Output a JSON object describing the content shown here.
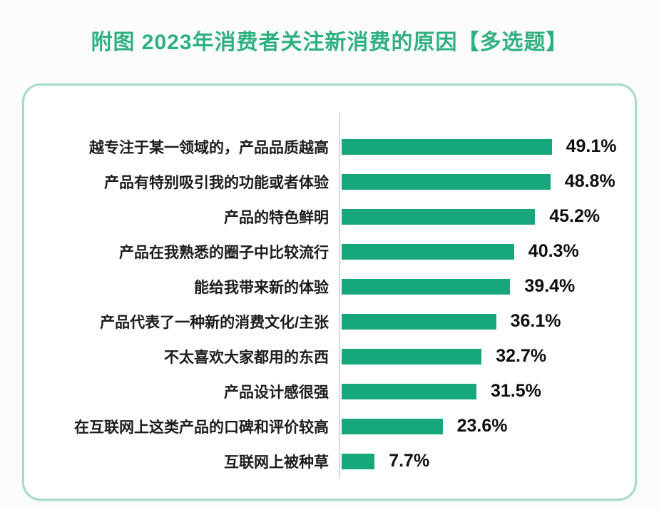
{
  "chart_data": {
    "type": "bar",
    "orientation": "horizontal",
    "title": "附图 2023年消费者关注新消费的原因【多选题】",
    "categories": [
      "越专注于某一领域的，产品品质越高",
      "产品有特别吸引我的功能或者体验",
      "产品的特色鲜明",
      "产品在我熟悉的圈子中比较流行",
      "能给我带来新的体验",
      "产品代表了一种新的消费文化/主张",
      "不太喜欢大家都用的东西",
      "产品设计感很强",
      "在互联网上这类产品的口碑和评价较高",
      "互联网上被种草"
    ],
    "values": [
      49.1,
      48.8,
      45.2,
      40.3,
      39.4,
      36.1,
      32.7,
      31.5,
      23.6,
      7.7
    ],
    "value_labels": [
      "49.1%",
      "48.8%",
      "45.2%",
      "40.3%",
      "39.4%",
      "36.1%",
      "32.7%",
      "31.5%",
      "23.6%",
      "7.7%"
    ],
    "unit": "%",
    "xlabel": "",
    "ylabel": "",
    "xlim": [
      0,
      55
    ],
    "grid": false,
    "legend": false,
    "data_labels": "outside-end",
    "bar_color": "#16a87c"
  },
  "colors": {
    "title": "#2fb080",
    "bar": "#16a87c",
    "card_border": "#a6dbc7",
    "card_bg": "#ffffff",
    "axis_line": "#d9d9d9",
    "label_text": "#1c1c1c",
    "value_text": "#0f0f0f",
    "page_bg": "#fbfcfb"
  }
}
